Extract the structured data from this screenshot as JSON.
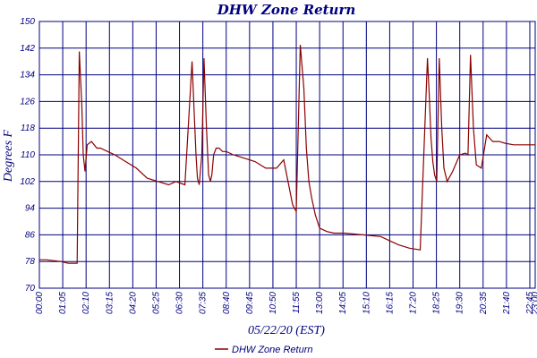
{
  "chart_data": {
    "type": "line",
    "title": "DHW Zone Return",
    "xlabel": "05/22/20 (EST)",
    "ylabel": "Degrees F",
    "ylim": [
      70,
      150
    ],
    "yticks": [
      "70",
      "78",
      "86",
      "94",
      "102",
      "110",
      "118",
      "126",
      "134",
      "142",
      "150"
    ],
    "xticks": [
      "00:00",
      "01:05",
      "02:10",
      "03:15",
      "04:20",
      "05:25",
      "06:30",
      "07:35",
      "08:40",
      "09:45",
      "10:50",
      "11:55",
      "13:00",
      "14:05",
      "15:10",
      "16:15",
      "17:20",
      "18:25",
      "19:30",
      "20:35",
      "21:40",
      "22:45",
      "23:00"
    ],
    "xlim_minutes": [
      0,
      1380
    ],
    "grid": true,
    "legend_position": "bottom",
    "colors": {
      "line": "#8b0000",
      "grid": "#000080",
      "text": "#000080"
    },
    "series": [
      {
        "name": "DHW Zone Return",
        "x": [
          0,
          20,
          60,
          80,
          105,
          111,
          118,
          122,
          127,
          133,
          145,
          160,
          170,
          190,
          210,
          240,
          270,
          300,
          330,
          360,
          380,
          405,
          425,
          430,
          436,
          440,
          445,
          452,
          458,
          465,
          471,
          476,
          480,
          485,
          492,
          500,
          510,
          520,
          540,
          570,
          600,
          630,
          660,
          680,
          705,
          715,
          726,
          736,
          743,
          750,
          758,
          768,
          780,
          800,
          820,
          850,
          900,
          950,
          980,
          1000,
          1030,
          1060,
          1080,
          1085,
          1090,
          1095,
          1100,
          1106,
          1113,
          1120,
          1126,
          1135,
          1150,
          1170,
          1186,
          1193,
          1200,
          1208,
          1216,
          1230,
          1245,
          1262,
          1272,
          1280,
          1295,
          1320,
          1350,
          1380
        ],
        "y": [
          78.5,
          78.5,
          78,
          77.5,
          77.5,
          141,
          125,
          110,
          105,
          113,
          114,
          112,
          112,
          111,
          110,
          108,
          106,
          103,
          102,
          101,
          102,
          101,
          138,
          125,
          110,
          103,
          101,
          110,
          139,
          118,
          104,
          102,
          104,
          110,
          112,
          112,
          111,
          111,
          110,
          109,
          108,
          106,
          106,
          108.5,
          95,
          93,
          143,
          130,
          112,
          102,
          97,
          92,
          88,
          87,
          86.5,
          86.5,
          86,
          85.5,
          84,
          83,
          82,
          81.5,
          139,
          128,
          115,
          108,
          104,
          102,
          139,
          118,
          106,
          102,
          105,
          110,
          110.5,
          110,
          140,
          118,
          107,
          106,
          116,
          114,
          114,
          114,
          113.5,
          113,
          113,
          113
        ]
      }
    ]
  }
}
